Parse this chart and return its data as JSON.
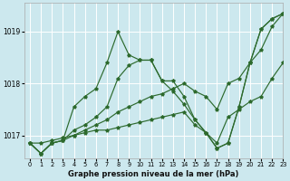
{
  "title": "Graphe pression niveau de la mer (hPa)",
  "bg_color": "#cce8ee",
  "grid_color": "#ffffff",
  "line_color": "#2d6a2d",
  "xlim": [
    -0.5,
    23
  ],
  "ylim": [
    1016.55,
    1019.55
  ],
  "yticks": [
    1017,
    1018,
    1019
  ],
  "xticks": [
    0,
    1,
    2,
    3,
    4,
    5,
    6,
    7,
    8,
    9,
    10,
    11,
    12,
    13,
    14,
    15,
    16,
    17,
    18,
    19,
    20,
    21,
    22,
    23
  ],
  "series": {
    "line_spiky": [
      1016.85,
      1016.65,
      1016.85,
      1016.9,
      1017.55,
      1017.75,
      1017.9,
      1018.4,
      1019.0,
      1018.55,
      1018.45,
      1018.45,
      1018.05,
      1018.05,
      1017.75,
      1017.3,
      1017.05,
      1016.75,
      1016.85,
      1017.55,
      1018.4,
      1019.05,
      1019.25,
      1019.35
    ],
    "line_diagonal": [
      1016.85,
      1016.85,
      1016.9,
      1016.95,
      1017.0,
      1017.1,
      1017.2,
      1017.3,
      1017.45,
      1017.55,
      1017.65,
      1017.75,
      1017.8,
      1017.9,
      1018.0,
      1017.85,
      1017.75,
      1017.5,
      1018.0,
      1018.1,
      1018.4,
      1018.65,
      1019.1,
      1019.35
    ],
    "line_medium": [
      1016.85,
      1016.65,
      1016.85,
      1016.9,
      1017.1,
      1017.2,
      1017.35,
      1017.55,
      1018.1,
      1018.35,
      1018.45,
      1018.45,
      1018.05,
      1017.85,
      1017.6,
      1017.3,
      1017.05,
      1016.75,
      1016.85,
      1017.55,
      1018.4,
      1019.05,
      1019.25,
      1019.35
    ],
    "line_flat": [
      1016.85,
      1016.65,
      1016.85,
      1016.9,
      1017.0,
      1017.05,
      1017.1,
      1017.1,
      1017.15,
      1017.2,
      1017.25,
      1017.3,
      1017.35,
      1017.4,
      1017.45,
      1017.2,
      1017.05,
      1016.85,
      1017.35,
      1017.5,
      1017.65,
      1017.75,
      1018.1,
      1018.4
    ]
  }
}
